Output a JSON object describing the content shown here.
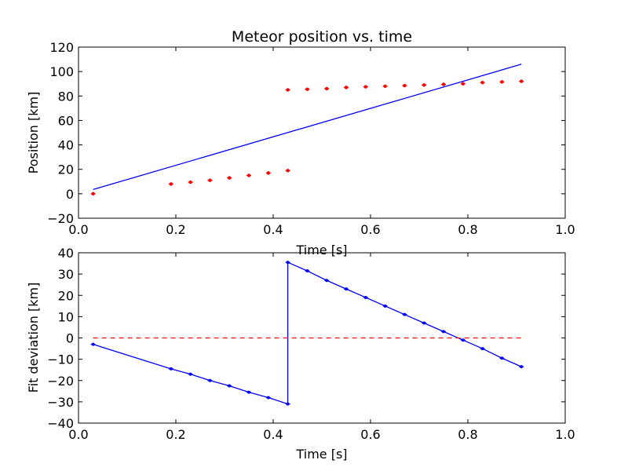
{
  "chart_data": [
    {
      "type": "scatter",
      "title": "Meteor position vs. time",
      "xlabel": "Time [s]",
      "ylabel": "Position [km]",
      "xlim": [
        0.0,
        1.0
      ],
      "ylim": [
        -20,
        120
      ],
      "xticks": [
        "0.0",
        "0.2",
        "0.4",
        "0.6",
        "0.8",
        "1.0"
      ],
      "yticks": [
        "−20",
        "0",
        "20",
        "40",
        "60",
        "80",
        "100",
        "120"
      ],
      "xtick_values": [
        0.0,
        0.2,
        0.4,
        0.6,
        0.8,
        1.0
      ],
      "ytick_values": [
        -20,
        0,
        20,
        40,
        60,
        80,
        100,
        120
      ],
      "colors": {
        "points": "#ff0000",
        "fit": "#0000ff"
      },
      "series": [
        {
          "kind": "points",
          "x": [
            0.03,
            0.19,
            0.23,
            0.27,
            0.31,
            0.35,
            0.39,
            0.43,
            0.43,
            0.47,
            0.51,
            0.55,
            0.59,
            0.63,
            0.67,
            0.71,
            0.75,
            0.79,
            0.83,
            0.87,
            0.91
          ],
          "y": [
            0,
            8,
            9.5,
            11,
            13,
            15,
            17,
            19,
            85,
            85.5,
            86,
            87,
            87.5,
            88,
            88.5,
            89,
            89.5,
            90,
            91,
            91.5,
            92
          ]
        },
        {
          "kind": "fit-line",
          "x": [
            0.03,
            0.91
          ],
          "y": [
            3.5,
            106
          ]
        }
      ],
      "grid": false
    },
    {
      "type": "line",
      "title": "",
      "xlabel": "Time [s]",
      "ylabel": "Fit deviation [km]",
      "xlim": [
        0.0,
        1.0
      ],
      "ylim": [
        -40,
        40
      ],
      "xticks": [
        "0.0",
        "0.2",
        "0.4",
        "0.6",
        "0.8",
        "1.0"
      ],
      "yticks": [
        "−40",
        "−30",
        "−20",
        "−10",
        "0",
        "10",
        "20",
        "30",
        "40"
      ],
      "xtick_values": [
        0.0,
        0.2,
        0.4,
        0.6,
        0.8,
        1.0
      ],
      "ytick_values": [
        -40,
        -30,
        -20,
        -10,
        0,
        10,
        20,
        30,
        40
      ],
      "colors": {
        "deviation": "#0000ff",
        "zero": "#ff0000"
      },
      "series": [
        {
          "kind": "deviation",
          "x": [
            0.03,
            0.19,
            0.23,
            0.27,
            0.31,
            0.35,
            0.39,
            0.43,
            0.43,
            0.47,
            0.51,
            0.55,
            0.59,
            0.63,
            0.67,
            0.71,
            0.75,
            0.79,
            0.83,
            0.87,
            0.91
          ],
          "y": [
            -3,
            -14.5,
            -17,
            -20,
            -22.5,
            -25.5,
            -28,
            -31,
            35.5,
            31.5,
            27,
            23,
            19,
            15,
            11,
            7,
            3,
            -1,
            -5,
            -9.5,
            -13.5
          ]
        },
        {
          "kind": "zero-line",
          "x": [
            0.03,
            0.91
          ],
          "y": [
            0,
            0
          ]
        }
      ],
      "grid": false
    }
  ]
}
